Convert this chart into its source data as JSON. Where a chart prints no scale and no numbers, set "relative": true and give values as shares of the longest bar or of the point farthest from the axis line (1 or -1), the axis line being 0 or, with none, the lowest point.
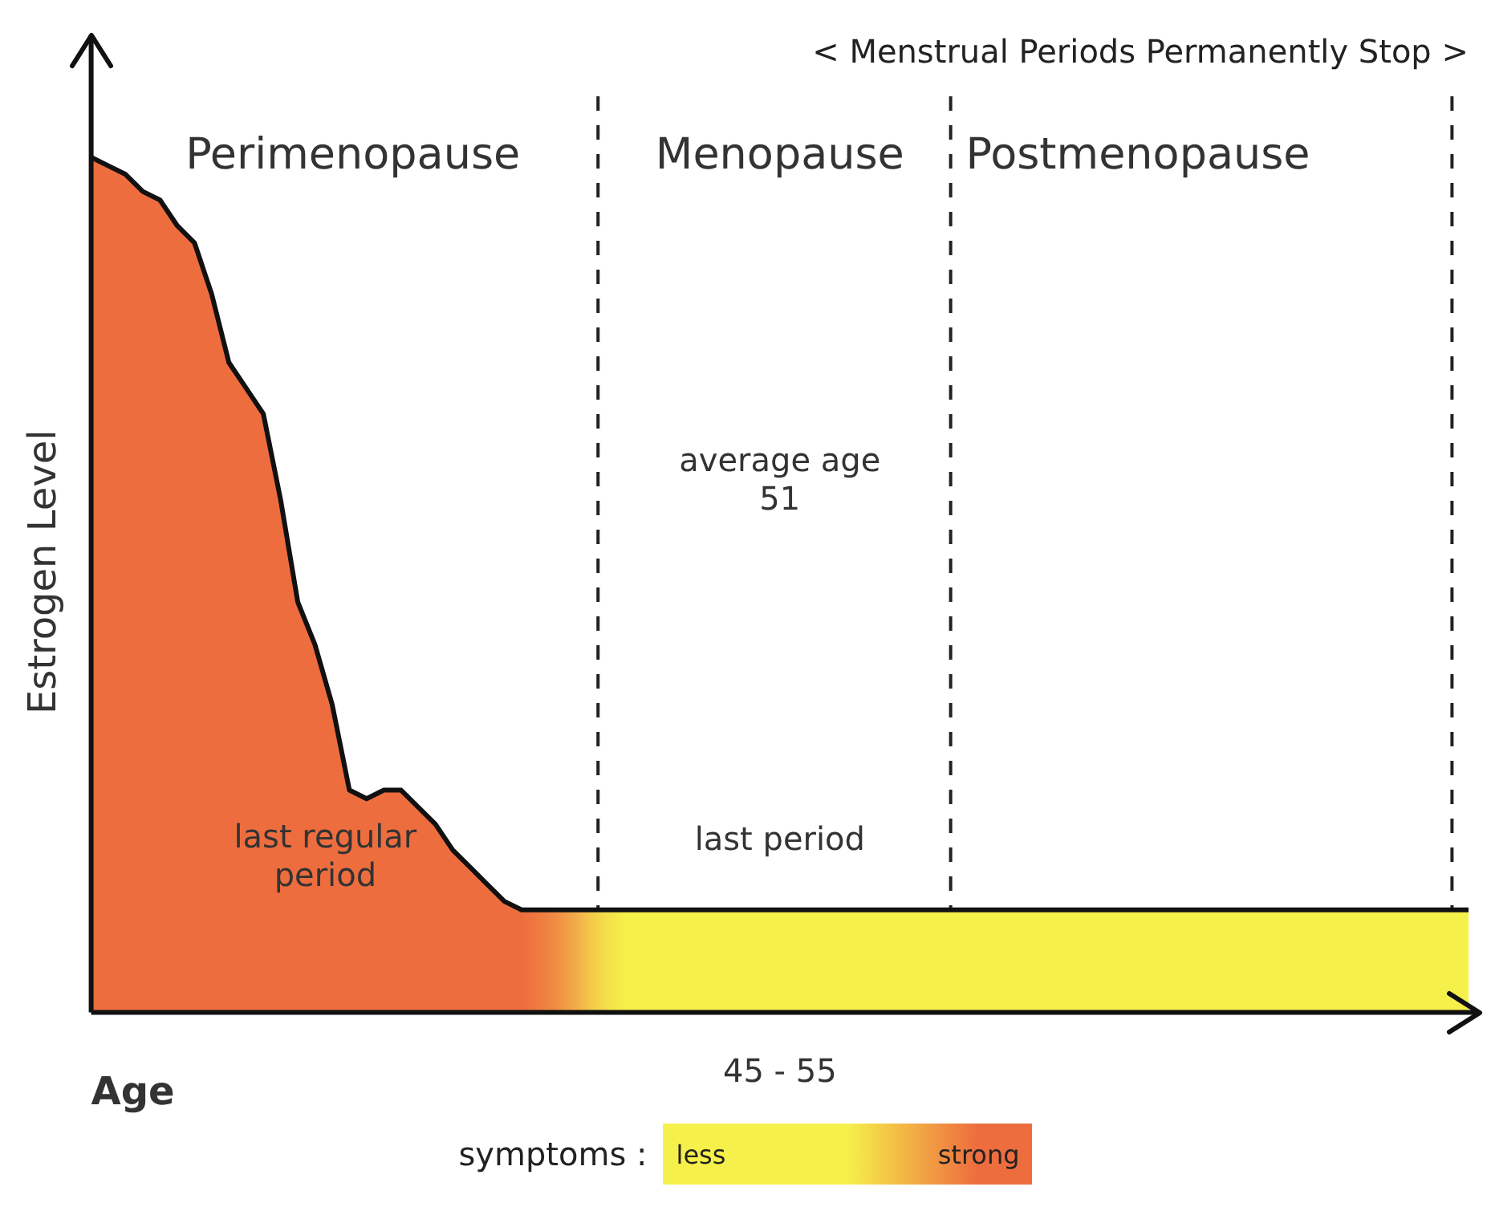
{
  "chart_data": {
    "type": "area",
    "title": "< Menstrual Periods Permanently Stop >",
    "xlabel": "Age",
    "ylabel": "Estrogen Level",
    "legend_title": "symptoms :",
    "relative": true,
    "categories": [
      null,
      null,
      null,
      null,
      null,
      null,
      null,
      null,
      null,
      null,
      null,
      null,
      null,
      null,
      null,
      null,
      null,
      null,
      null,
      null,
      null,
      null,
      null,
      null,
      null,
      null,
      null,
      null,
      null,
      null,
      null,
      null,
      null,
      null,
      null,
      null,
      null,
      null,
      null,
      null,
      null,
      null,
      null,
      null,
      null,
      null,
      null,
      null,
      null,
      null,
      null,
      null,
      null,
      null,
      null,
      null,
      null,
      null,
      null,
      null,
      null,
      null,
      null,
      null,
      null,
      null,
      null,
      null,
      null,
      null,
      null,
      null,
      null,
      null,
      null,
      null,
      null,
      null,
      null,
      null,
      null
    ],
    "series": [
      {
        "color": "#111111",
        "values": [
          1.0,
          0.99,
          0.98,
          0.96,
          0.95,
          0.92,
          0.9,
          0.84,
          0.76,
          0.73,
          0.7,
          0.6,
          0.48,
          0.43,
          0.36,
          0.26,
          0.25,
          0.26,
          0.26,
          0.24,
          0.22,
          0.19,
          0.17,
          0.15,
          0.13,
          0.12,
          0.12,
          0.12,
          0.12,
          0.12,
          0.12,
          0.12,
          0.12,
          0.12,
          0.12,
          0.12,
          0.12,
          0.12,
          0.12,
          0.12,
          0.12,
          0.12,
          0.12,
          0.12,
          0.12,
          0.12,
          0.12,
          0.12,
          0.12,
          0.12,
          0.12,
          0.12,
          0.12,
          0.12,
          0.12,
          0.12,
          0.12,
          0.12,
          0.12,
          0.12,
          0.12,
          0.12,
          0.12,
          0.12,
          0.12,
          0.12,
          0.12,
          0.12,
          0.12,
          0.12,
          0.12,
          0.12,
          0.12,
          0.12,
          0.12,
          0.12,
          0.12,
          0.12,
          0.12,
          0.12,
          0.12
        ],
        "colors": [
          "#ee6d3f",
          "#ee6d3f",
          "#ee6d3f",
          "#ee6d3f",
          "#ee6d3f",
          "#ee6d3f",
          "#ee6d3f",
          "#ee6d3f",
          "#ee6d3f",
          "#ee6d3f",
          "#ee6d3f",
          "#ee6d3f",
          "#ee6d3f",
          "#ee6d3f",
          "#ee6d3f",
          "#ee6d3f",
          "#ee6d3f",
          "#ee6d3f",
          "#ee6d3f",
          "#ee6d3f",
          "#ee6d3f",
          "#ee6d3f",
          "#ee6d3f",
          "#ee6d3f",
          "#ee6d3f",
          "#ee6d3f",
          "#ef7a40",
          "#f08d44",
          "#f2a848",
          "#f4c84a",
          "#f5e04a",
          "#f6f04a",
          "#f6f04a",
          "#f6f04a",
          "#f6f04a",
          "#f6f04a",
          "#f6f04a",
          "#f6f04a",
          "#f6f04a",
          "#f6f04a",
          "#f6f04a",
          "#f6f04a",
          "#f6f04a",
          "#f6f04a",
          "#f6f04a",
          "#f6f04a",
          "#f6f04a",
          "#f6f04a",
          "#f6f04a",
          "#f6f04a",
          "#f6f04a",
          "#f6f04a",
          "#f6f04a",
          "#f6f04a",
          "#f6f04a",
          "#f6f04a",
          "#f6f04a",
          "#f6f04a",
          "#f6f04a",
          "#f6f04a",
          "#f6f04a",
          "#f6f04a",
          "#f6f04a",
          "#f6f04a",
          "#f6f04a",
          "#f6f04a",
          "#f6f04a",
          "#f6f04a",
          "#f6f04a",
          "#f6f04a",
          "#f6f04a",
          "#f6f04a",
          "#f6f04a",
          "#f6f04a",
          "#f6f04a",
          "#f6f04a",
          "#f6f04a",
          "#f6f04a",
          "#f6f04a",
          "#f6f04a",
          "#f6f04a"
        ]
      }
    ],
    "annotations": [
      "Perimenopause",
      "Menopause",
      "Postmenopause",
      "average age\n51",
      "last regular period",
      "last period",
      "45 - 55",
      "less",
      "strong"
    ]
  }
}
